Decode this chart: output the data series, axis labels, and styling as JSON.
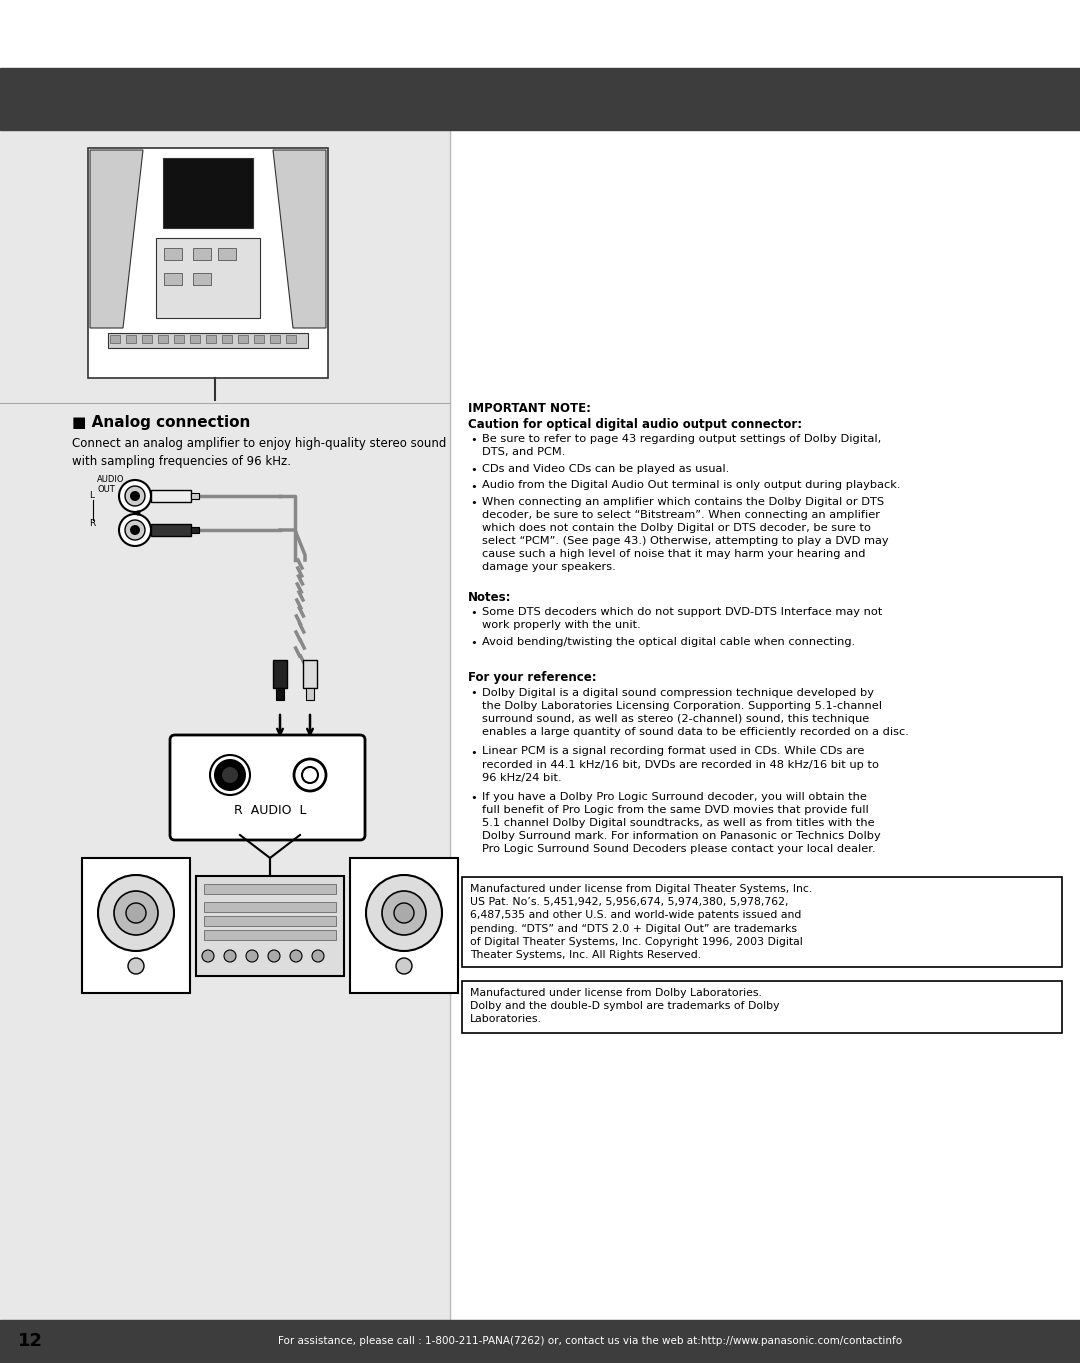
{
  "page_bg": "#ffffff",
  "left_bg": "#e8e8e8",
  "header_bar_color": "#3d3d3d",
  "footer_bar_color": "#3d3d3d",
  "footer_text": "For assistance, please call : 1-800-211-PANA(7262) or, contact us via the web at:http://www.panasonic.com/contactinfo",
  "footer_text_color": "#ffffff",
  "page_number": "12",
  "analog_section_title": "■ Analog connection",
  "analog_intro": "Connect an analog amplifier to enjoy high-quality stereo sound\nwith sampling frequencies of 96 kHz.",
  "important_note_title": "IMPORTANT NOTE:",
  "caution_title": "Caution for optical digital audio output connector:",
  "bullet1": "Be sure to refer to page 43 regarding output settings of Dolby Digital,\nDTS, and PCM.",
  "bullet2": "CDs and Video CDs can be played as usual.",
  "bullet3": "Audio from the Digital Audio Out terminal is only output during playback.",
  "bullet4": "When connecting an amplifier which contains the Dolby Digital or DTS\ndecoder, be sure to select “Bitstream”. When connecting an amplifier\nwhich does not contain the Dolby Digital or DTS decoder, be sure to\nselect “PCM”. (See page 43.) Otherwise, attempting to play a DVD may\ncause such a high level of noise that it may harm your hearing and\ndamage your speakers.",
  "notes_title": "Notes:",
  "note1": "Some DTS decoders which do not support DVD-DTS Interface may not\nwork properly with the unit.",
  "note2": "Avoid bending/twisting the optical digital cable when connecting.",
  "for_ref_title": "For your reference:",
  "ref1": "Dolby Digital is a digital sound compression technique developed by\nthe Dolby Laboratories Licensing Corporation. Supporting 5.1-channel\nsurround sound, as well as stereo (2-channel) sound, this technique\nenables a large quantity of sound data to be efficiently recorded on a disc.",
  "ref2": "Linear PCM is a signal recording format used in CDs. While CDs are\nrecorded in 44.1 kHz/16 bit, DVDs are recorded in 48 kHz/16 bit up to\n96 kHz/24 bit.",
  "ref3": "If you have a Dolby Pro Logic Surround decoder, you will obtain the\nfull benefit of Pro Logic from the same DVD movies that provide full\n5.1 channel Dolby Digital soundtracks, as well as from titles with the\nDolby Surround mark. For information on Panasonic or Technics Dolby\nPro Logic Surround Sound Decoders please contact your local dealer.",
  "dts_box_text": "Manufactured under license from Digital Theater Systems, Inc.\nUS Pat. No’s. 5,451,942, 5,956,674, 5,974,380, 5,978,762,\n6,487,535 and other U.S. and world-wide patents issued and\npending. “DTS” and “DTS 2.0 + Digital Out” are trademarks\nof Digital Theater Systems, Inc. Copyright 1996, 2003 Digital\nTheater Systems, Inc. All Rights Reserved.",
  "dolby_box_text": "Manufactured under license from Dolby Laboratories.\nDolby and the double-D symbol are trademarks of Dolby\nLaboratories.",
  "r_audio_l_label": "R  AUDIO  L"
}
